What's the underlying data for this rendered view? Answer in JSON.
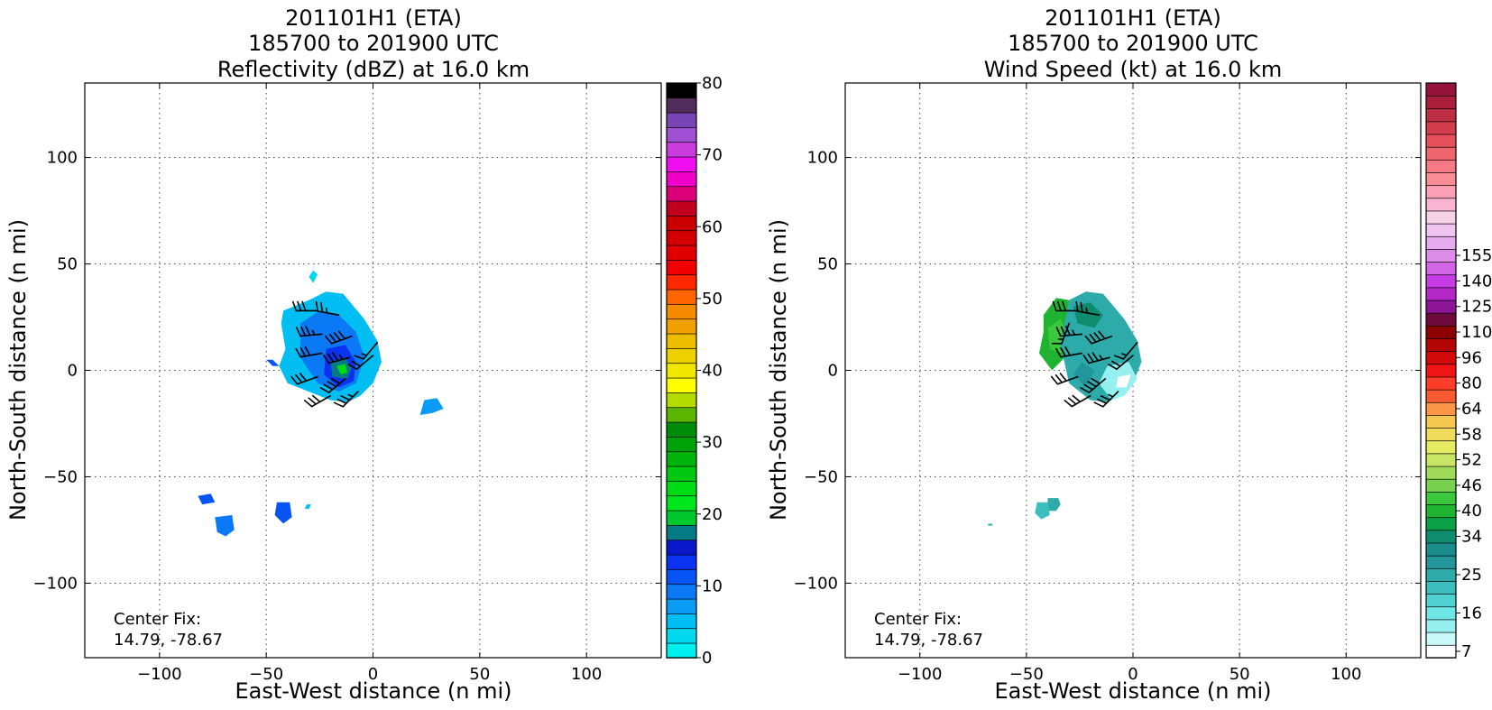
{
  "panels": [
    {
      "id": "reflectivity",
      "title_lines": [
        "201101H1 (ETA)",
        "185700 to 201900 UTC",
        "Reflectivity (dBZ) at 16.0 km"
      ],
      "chart_data": {
        "type": "heatmap",
        "xlabel": "East-West distance (n mi)",
        "ylabel": "North-South distance (n mi)",
        "xlim": [
          -135,
          135
        ],
        "ylim": [
          -135,
          135
        ],
        "xticks": [
          -100,
          -50,
          0,
          50,
          100
        ],
        "yticks": [
          -100,
          -50,
          0,
          50,
          100
        ],
        "xtick_labels": [
          "−100",
          "−50",
          "0",
          "50",
          "100"
        ],
        "ytick_labels": [
          "−100",
          "−50",
          "0",
          "50",
          "100"
        ],
        "grid": true,
        "annotation": [
          "Center Fix:",
          "14.79, -78.67"
        ],
        "colorbar": {
          "label": "Reflectivity (dBZ)",
          "min": 0,
          "max": 80,
          "tick_values": [
            0,
            10,
            20,
            30,
            40,
            50,
            60,
            70,
            80
          ],
          "tick_labels": [
            "0",
            "10",
            "20",
            "30",
            "40",
            "50",
            "60",
            "70",
            "80"
          ],
          "colors": [
            "#00f0f0",
            "#00d8ee",
            "#00bdf2",
            "#0a9cf5",
            "#0b78f5",
            "#0754f5",
            "#0a32f0",
            "#0818c8",
            "#047a84",
            "#00c82e",
            "#00e61e",
            "#00dc14",
            "#00c810",
            "#00b40c",
            "#00a20a",
            "#008c08",
            "#5ab400",
            "#b4dc00",
            "#ffff00",
            "#f0e600",
            "#eed200",
            "#edbe00",
            "#f0a000",
            "#f58c00",
            "#ff6400",
            "#ff2800",
            "#f00000",
            "#e10000",
            "#d20000",
            "#c80000",
            "#c0001e",
            "#dc0078",
            "#f000c8",
            "#f00ff0",
            "#c83cdc",
            "#a050d2",
            "#7846b4",
            "#502d5a",
            "#000000"
          ]
        },
        "regions": [
          {
            "x": [
              -42,
              -30,
              -22,
              -14,
              -4,
              2,
              4,
              0,
              -6,
              -12,
              -20,
              -30,
              -40,
              -44,
              -41,
              -43
            ],
            "y": [
              28,
              33,
              37,
              36,
              24,
              14,
              4,
              -6,
              -12,
              -15,
              -14,
              -10,
              -6,
              2,
              10,
              22
            ],
            "dbz": 6
          },
          {
            "x": [
              -34,
              -25,
              -16,
              -8,
              -4,
              -8,
              -16,
              -26,
              -34
            ],
            "y": [
              22,
              28,
              26,
              18,
              6,
              -6,
              -10,
              -6,
              6
            ],
            "dbz": 10
          },
          {
            "x": [
              -22,
              -13,
              -8,
              -9,
              -16,
              -23
            ],
            "y": [
              10,
              12,
              4,
              -5,
              -8,
              -2
            ],
            "dbz": 14
          },
          {
            "x": [
              -20,
              -13,
              -10,
              -12,
              -19
            ],
            "y": [
              4,
              6,
              1,
              -4,
              -3
            ],
            "dbz": 18
          },
          {
            "x": [
              -17,
              -13,
              -12,
              -15
            ],
            "y": [
              2,
              3,
              -1,
              -2
            ],
            "dbz": 24
          },
          {
            "x": [
              -28,
              -26,
              -28,
              -30
            ],
            "y": [
              47,
              45,
              41,
              44
            ],
            "dbz": 3
          },
          {
            "x": [
              -50,
              -47,
              -44,
              -47
            ],
            "y": [
              5,
              5,
              2,
              2
            ],
            "dbz": 11
          },
          {
            "x": [
              24,
              30,
              33,
              28,
              22
            ],
            "y": [
              -14,
              -13,
              -18,
              -20,
              -21
            ],
            "dbz": 8
          },
          {
            "x": [
              -82,
              -76,
              -74,
              -80
            ],
            "y": [
              -59,
              -58,
              -62,
              -63
            ],
            "dbz": 11
          },
          {
            "x": [
              -74,
              -66,
              -65,
              -69,
              -73
            ],
            "y": [
              -69,
              -68,
              -75,
              -78,
              -76
            ],
            "dbz": 10
          },
          {
            "x": [
              -45,
              -39,
              -38,
              -42,
              -46
            ],
            "y": [
              -62,
              -62,
              -69,
              -72,
              -68
            ],
            "dbz": 11
          },
          {
            "x": [
              -31,
              -29,
              -30,
              -32
            ],
            "y": [
              -63,
              -63,
              -65,
              -65
            ],
            "dbz": 5
          }
        ],
        "barbs": [
          {
            "x": -26,
            "y": 28,
            "dir_deg": 270,
            "speed_kt": 30
          },
          {
            "x": -16,
            "y": 26,
            "dir_deg": 280,
            "speed_kt": 25
          },
          {
            "x": -24,
            "y": 17,
            "dir_deg": 265,
            "speed_kt": 35
          },
          {
            "x": -10,
            "y": 16,
            "dir_deg": 250,
            "speed_kt": 40
          },
          {
            "x": 2,
            "y": 13,
            "dir_deg": 220,
            "speed_kt": 15
          },
          {
            "x": -24,
            "y": 8,
            "dir_deg": 260,
            "speed_kt": 30
          },
          {
            "x": -11,
            "y": 6,
            "dir_deg": 255,
            "speed_kt": 35
          },
          {
            "x": 0,
            "y": 7,
            "dir_deg": 230,
            "speed_kt": 20
          },
          {
            "x": -26,
            "y": -3,
            "dir_deg": 250,
            "speed_kt": 30
          },
          {
            "x": -13,
            "y": -4,
            "dir_deg": 230,
            "speed_kt": 40
          },
          {
            "x": -20,
            "y": -12,
            "dir_deg": 240,
            "speed_kt": 30
          },
          {
            "x": -7,
            "y": -10,
            "dir_deg": 225,
            "speed_kt": 35
          }
        ]
      }
    },
    {
      "id": "windspeed",
      "title_lines": [
        "201101H1 (ETA)",
        "185700 to 201900 UTC",
        "Wind Speed (kt) at 16.0 km"
      ],
      "chart_data": {
        "type": "heatmap",
        "xlabel": "East-West distance (n mi)",
        "ylabel": "North-South distance (n mi)",
        "xlim": [
          -135,
          135
        ],
        "ylim": [
          -135,
          135
        ],
        "xticks": [
          -100,
          -50,
          0,
          50,
          100
        ],
        "yticks": [
          -100,
          -50,
          0,
          50,
          100
        ],
        "xtick_labels": [
          "−100",
          "−50",
          "0",
          "50",
          "100"
        ],
        "ytick_labels": [
          "−100",
          "−50",
          "0",
          "50",
          "100"
        ],
        "grid": true,
        "annotation": [
          "Center Fix:",
          "14.79, -78.67"
        ],
        "colorbar": {
          "label": "Wind Speed (kt)",
          "tick_labels": [
            "7",
            "16",
            "25",
            "34",
            "40",
            "46",
            "52",
            "58",
            "64",
            "80",
            "96",
            "110",
            "125",
            "140",
            "155"
          ],
          "tick_bins": [
            0,
            3,
            6,
            9,
            11,
            13,
            15,
            17,
            19,
            21,
            23,
            25,
            27,
            29,
            31
          ],
          "colors": [
            "#ffffff",
            "#c8fafa",
            "#96f0f0",
            "#6ee6e6",
            "#50d2d2",
            "#3cbebe",
            "#2daaaa",
            "#23969b",
            "#1a8c8c",
            "#0e8c6e",
            "#0aa046",
            "#1eb432",
            "#3cc83c",
            "#78d250",
            "#a0dc5a",
            "#c8e664",
            "#e6eb64",
            "#f0dc5a",
            "#f5c850",
            "#fa9646",
            "#fa5a32",
            "#ff3c28",
            "#f01414",
            "#d20a0a",
            "#b40505",
            "#8c0000",
            "#6e0a3c",
            "#8c1496",
            "#b428c8",
            "#c83ce6",
            "#d264e6",
            "#dc8ce6",
            "#e6aaee",
            "#f0c3f0",
            "#f5d2e6",
            "#fab4d2",
            "#fa9fb4",
            "#fa8c96",
            "#f57882",
            "#f0646e",
            "#e6505a",
            "#d23c4b",
            "#be2d41",
            "#aa1e3c",
            "#96143c"
          ]
        },
        "regions": [
          {
            "x": [
              -42,
              -36,
              -30,
              -26,
              -30,
              -38,
              -44,
              -42
            ],
            "y": [
              26,
              34,
              33,
              24,
              8,
              0,
              8,
              18
            ],
            "kt": 40
          },
          {
            "x": [
              -40,
              -34,
              -31,
              -33,
              -39
            ],
            "y": [
              20,
              24,
              17,
              8,
              10
            ],
            "kt": 44
          },
          {
            "x": [
              -30,
              -22,
              -14,
              -4,
              2,
              4,
              0,
              -6,
              -12,
              -20,
              -30,
              -34
            ],
            "y": [
              33,
              37,
              36,
              24,
              14,
              4,
              -6,
              -12,
              -15,
              -14,
              -6,
              12
            ],
            "kt": 24
          },
          {
            "x": [
              -28,
              -20,
              -14,
              -18,
              -26
            ],
            "y": [
              30,
              32,
              26,
              20,
              22
            ],
            "kt": 33
          },
          {
            "x": [
              -24,
              -18,
              -22,
              -28
            ],
            "y": [
              4,
              0,
              -8,
              -2
            ],
            "kt": 28
          },
          {
            "x": [
              -12,
              -2,
              2,
              -4,
              -10,
              -16
            ],
            "y": [
              2,
              4,
              -4,
              -12,
              -14,
              -6
            ],
            "kt": 12
          },
          {
            "x": [
              -7,
              -1,
              -3,
              -8
            ],
            "y": [
              -3,
              -2,
              -8,
              -8
            ],
            "kt": 7
          },
          {
            "x": [
              -40,
              -35,
              -34,
              -36,
              -40
            ],
            "y": [
              -60,
              -60,
              -63,
              -66,
              -66
            ],
            "kt": 24
          },
          {
            "x": [
              -45,
              -40,
              -39,
              -43,
              -46
            ],
            "y": [
              -62,
              -62,
              -68,
              -70,
              -67
            ],
            "kt": 22
          },
          {
            "x": [
              24,
              28,
              30,
              27,
              23
            ],
            "y": [
              -16,
              -15,
              -18,
              -20,
              -21
            ],
            "kt": 7
          },
          {
            "x": [
              -68,
              -66,
              -66,
              -68
            ],
            "y": [
              -72,
              -72,
              -73,
              -73
            ],
            "kt": 23
          }
        ],
        "barbs": [
          {
            "x": -26,
            "y": 28,
            "dir_deg": 270,
            "speed_kt": 30
          },
          {
            "x": -16,
            "y": 26,
            "dir_deg": 280,
            "speed_kt": 25
          },
          {
            "x": -24,
            "y": 17,
            "dir_deg": 265,
            "speed_kt": 35
          },
          {
            "x": -10,
            "y": 16,
            "dir_deg": 250,
            "speed_kt": 40
          },
          {
            "x": 2,
            "y": 13,
            "dir_deg": 220,
            "speed_kt": 15
          },
          {
            "x": -24,
            "y": 8,
            "dir_deg": 260,
            "speed_kt": 30
          },
          {
            "x": -11,
            "y": 6,
            "dir_deg": 255,
            "speed_kt": 35
          },
          {
            "x": 0,
            "y": 7,
            "dir_deg": 230,
            "speed_kt": 20
          },
          {
            "x": -26,
            "y": -3,
            "dir_deg": 250,
            "speed_kt": 30
          },
          {
            "x": -13,
            "y": -4,
            "dir_deg": 230,
            "speed_kt": 40
          },
          {
            "x": -20,
            "y": -12,
            "dir_deg": 240,
            "speed_kt": 30
          },
          {
            "x": -7,
            "y": -10,
            "dir_deg": 225,
            "speed_kt": 35
          },
          {
            "x": -30,
            "y": 22,
            "dir_deg": 200,
            "speed_kt": 15
          }
        ]
      }
    }
  ]
}
